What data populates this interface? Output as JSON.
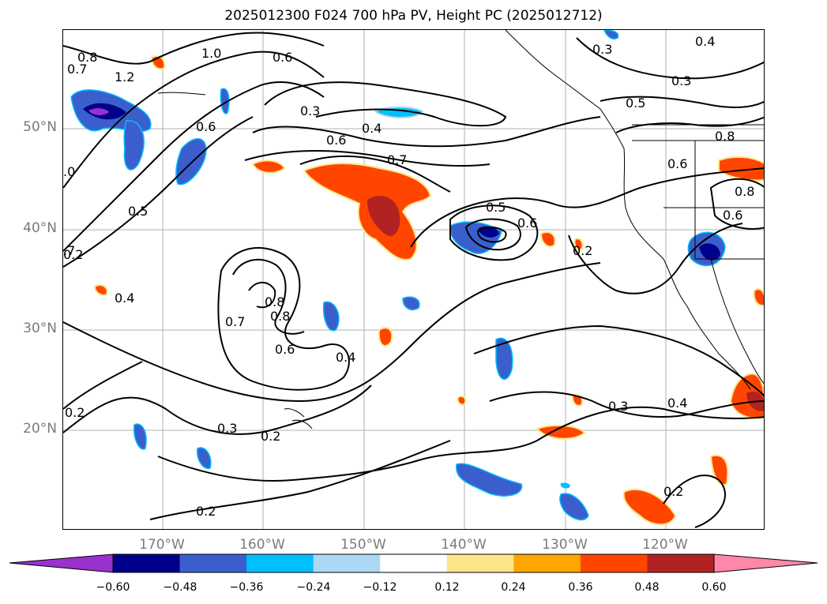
{
  "title": "2025012300 F024 700 hPa PV, Height PC (2025012712)",
  "lat_labels": [
    "50°N",
    "40°N",
    "30°N",
    "20°N"
  ],
  "lon_labels": [
    "170°W",
    "160°W",
    "150°W",
    "140°W",
    "130°W",
    "120°W"
  ],
  "colorbar": {
    "ticks": [
      "−0.60",
      "−0.48",
      "−0.36",
      "−0.24",
      "−0.12",
      "0.12",
      "0.24",
      "0.36",
      "0.48",
      "0.60"
    ],
    "colors": [
      "#9932cc",
      "#00008b",
      "#3a5fcd",
      "#00bfff",
      "#add8f5",
      "#ffffff",
      "#fce68a",
      "#ffa500",
      "#ff4500",
      "#b22222",
      "#ff88aa"
    ]
  },
  "contour_labels": [
    "0.7",
    "0.8",
    "1.0",
    "1.2",
    "0.6",
    "0.6",
    "0.3",
    "0.4",
    "0.6",
    "0.7",
    "0.5",
    "0.6",
    "0.3",
    "0.5",
    "0.3",
    "0.4",
    "0.6",
    "0.8",
    "0.8",
    "0.6",
    "0.8",
    "0.2",
    "0.7",
    "0.8",
    "0.6",
    "0.4",
    "0.4",
    "0.3",
    "0.2",
    "0.2",
    "0.3",
    "0.4",
    "0.2",
    "0.2",
    "0.2",
    ".7",
    ".0",
    "0.5"
  ]
}
